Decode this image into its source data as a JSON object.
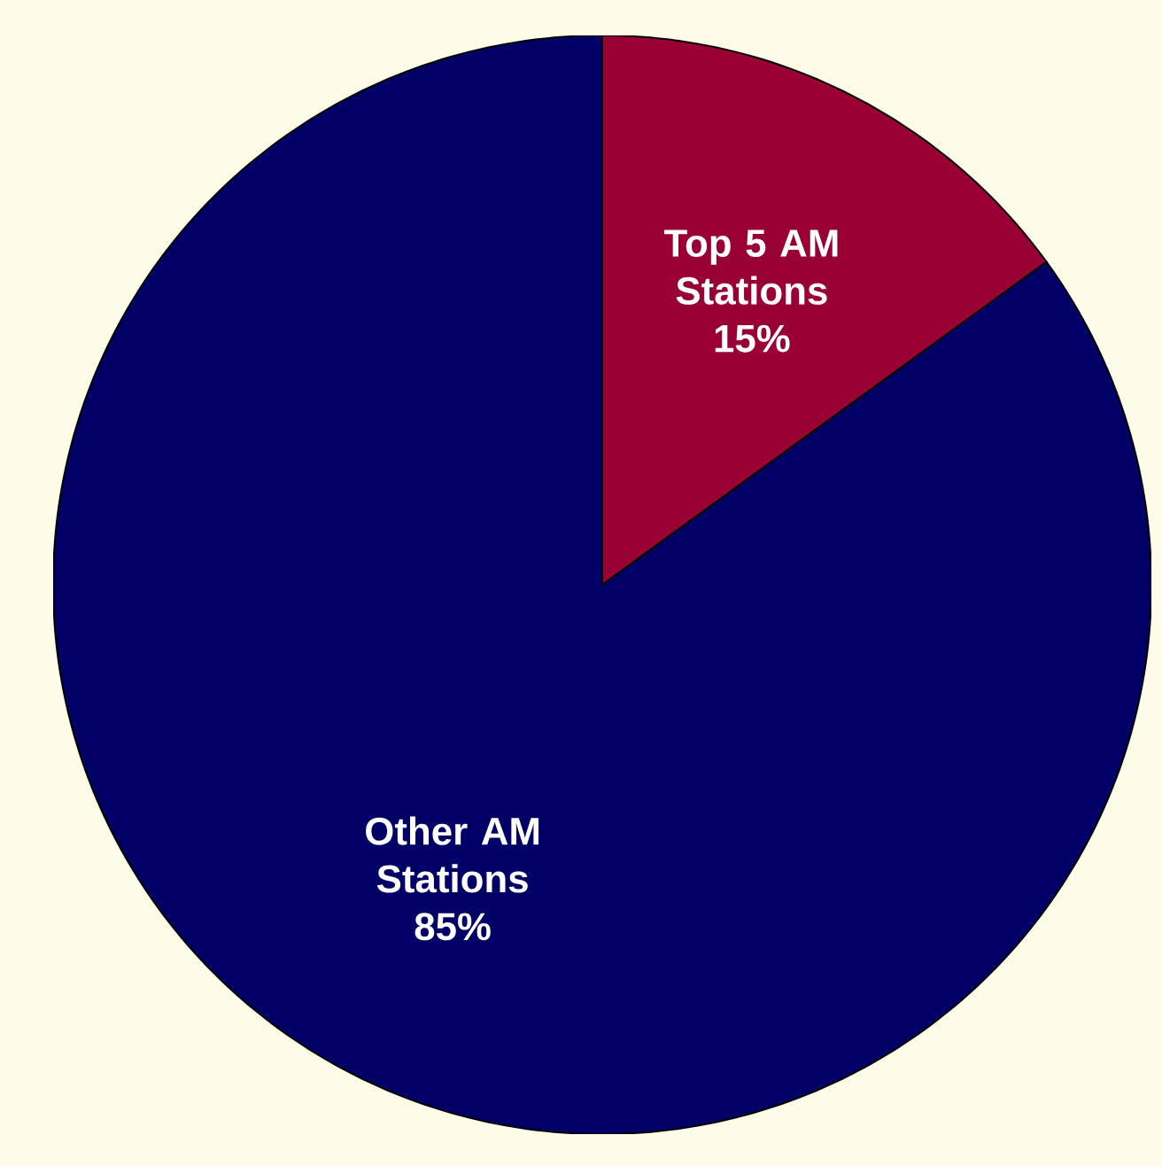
{
  "chart_data": {
    "type": "pie",
    "categories": [
      "Top 5 AM Stations",
      "Other AM Stations"
    ],
    "values": [
      15,
      85
    ],
    "value_labels": [
      "15%",
      "85%"
    ],
    "colors": [
      "#990033",
      "#000066"
    ]
  }
}
